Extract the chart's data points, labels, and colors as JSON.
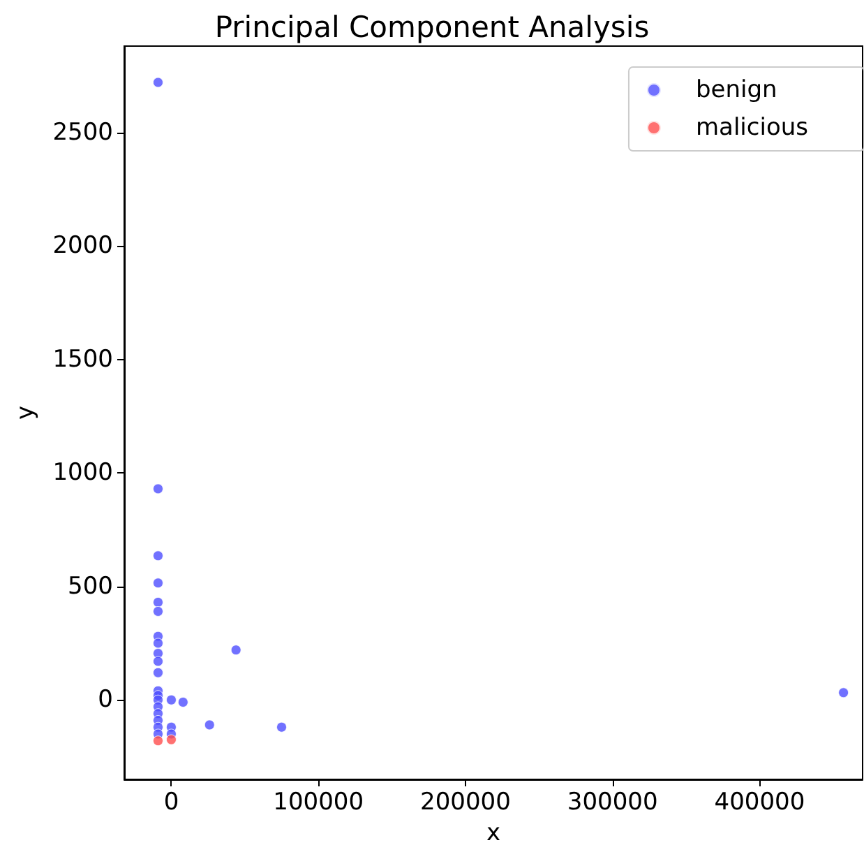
{
  "chart_data": {
    "type": "scatter",
    "title": "Principal Component Analysis",
    "xlabel": "x",
    "ylabel": "y",
    "legend": "top right",
    "marker": "circle",
    "grid": false,
    "xlim": [
      -32000,
      470000
    ],
    "xticks": [
      0,
      100000,
      200000,
      300000,
      400000
    ],
    "ylim": [
      -350,
      2880
    ],
    "yticks": [
      0,
      500,
      1000,
      1500,
      2000,
      2500
    ],
    "series": [
      {
        "name": "benign",
        "color": "#4d4dff",
        "x": [
          -9000,
          -9000,
          -9000,
          -9000,
          -9000,
          -9000,
          -9000,
          -9000,
          -9000,
          -9000,
          -9000,
          -9000,
          -9000,
          -9000,
          -9000,
          -9000,
          -9000,
          -9000,
          -9000,
          0,
          8000,
          0,
          0,
          26000,
          44000,
          75000,
          457000
        ],
        "values": [
          2720,
          930,
          635,
          515,
          430,
          390,
          280,
          250,
          205,
          170,
          120,
          40,
          20,
          0,
          -30,
          -60,
          -90,
          -120,
          -150,
          0,
          -10,
          -120,
          -150,
          -110,
          220,
          -120,
          32
        ]
      },
      {
        "name": "malicious",
        "color": "#ff4d4d",
        "x": [
          -9000,
          0
        ],
        "values": [
          -180,
          -175
        ]
      }
    ]
  }
}
